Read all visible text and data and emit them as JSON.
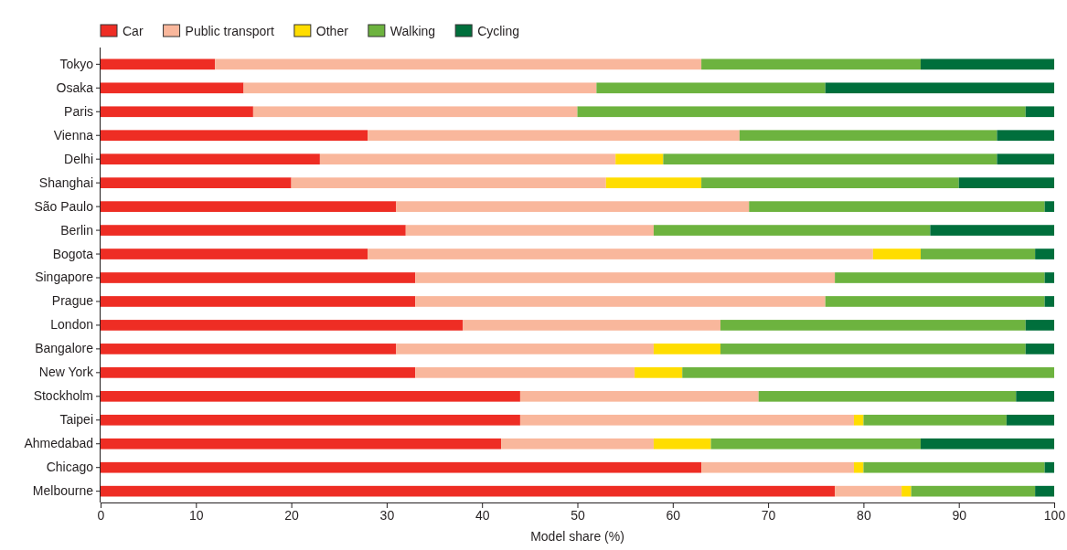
{
  "chart_data": {
    "type": "bar",
    "orientation": "horizontal",
    "stacked": true,
    "xlabel": "Model share (%)",
    "categories": [
      "Tokyo",
      "Osaka",
      "Paris",
      "Vienna",
      "Delhi",
      "Shanghai",
      "São Paulo",
      "Berlin",
      "Bogota",
      "Singapore",
      "Prague",
      "London",
      "Bangalore",
      "New York",
      "Stockholm",
      "Taipei",
      "Ahmedabad",
      "Chicago",
      "Melbourne"
    ],
    "series": [
      {
        "name": "Car",
        "color": "#ee2d24",
        "values": [
          12,
          15,
          16,
          28,
          23,
          20,
          31,
          32,
          28,
          33,
          33,
          38,
          31,
          33,
          44,
          44,
          42,
          63,
          77
        ]
      },
      {
        "name": "Public transport",
        "color": "#f9b79c",
        "values": [
          51,
          37,
          34,
          39,
          31,
          33,
          37,
          26,
          53,
          44,
          43,
          27,
          27,
          23,
          25,
          35,
          16,
          16,
          7
        ]
      },
      {
        "name": "Other",
        "color": "#ffdd00",
        "values": [
          0,
          0,
          0,
          0,
          5,
          10,
          0,
          0,
          5,
          0,
          0,
          0,
          7,
          5,
          0,
          1,
          6,
          1,
          1
        ]
      },
      {
        "name": "Walking",
        "color": "#6db33f",
        "values": [
          23,
          24,
          47,
          27,
          35,
          27,
          31,
          29,
          12,
          22,
          23,
          32,
          32,
          39,
          27,
          15,
          22,
          19,
          13
        ]
      },
      {
        "name": "Cycling",
        "color": "#006f3c",
        "values": [
          14,
          24,
          3,
          6,
          6,
          10,
          1,
          13,
          2,
          1,
          1,
          3,
          3,
          0,
          4,
          5,
          14,
          1,
          2
        ]
      }
    ],
    "xlim": [
      0,
      100
    ],
    "xticks": [
      0,
      10,
      20,
      30,
      40,
      50,
      60,
      70,
      80,
      90,
      100
    ],
    "grid": false,
    "legend": "top left"
  }
}
